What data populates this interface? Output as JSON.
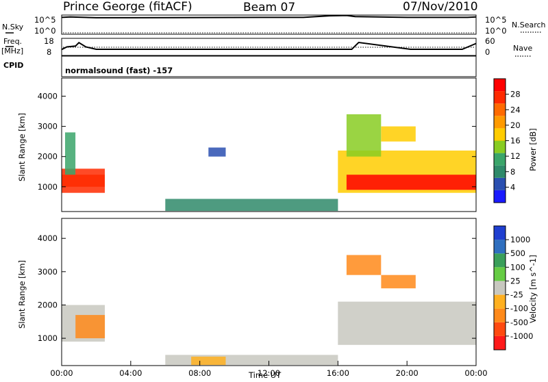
{
  "header": {
    "station": "Prince George (fitACF)",
    "beam": "Beam 07",
    "date": "07/Nov/2010"
  },
  "side_labels": {
    "nsky": "N.Sky",
    "freq": "Freq.",
    "freq_unit": "[MHz]",
    "cpid": "CPID",
    "nsearch": "N.Search",
    "nave": "Nave",
    "cpid_text": "normalsound (fast) -157"
  },
  "colors": {
    "velocity_scale": [
      "#1f3fd0",
      "#2f6fbf",
      "#3a9f5a",
      "#66cc44",
      "#c8c8c0",
      "#ffb020",
      "#ff8a1a",
      "#ff4a10",
      "#ff1a1a"
    ],
    "power_scale": [
      "#1a1aff",
      "#2a4fb0",
      "#2f8a6a",
      "#3aa56a",
      "#88cc22",
      "#ffcc00",
      "#ff9a00",
      "#ff6a00",
      "#ff2a00",
      "#ff0000"
    ]
  },
  "chart_data": [
    {
      "type": "line",
      "name": "N.Sky / N.Search",
      "y_ticks": [
        "10^5",
        "10^0"
      ],
      "y_ticks_right": [
        "10^5",
        "10^0"
      ],
      "ylim": [
        0,
        5
      ],
      "series": [
        {
          "x": [
            0,
            0.5,
            2,
            4,
            8,
            12,
            14,
            15.5,
            16.5,
            17,
            20,
            22,
            23.5,
            24
          ],
          "values": [
            4.4,
            4.5,
            4.3,
            4.3,
            4.35,
            4.4,
            4.4,
            4.8,
            4.9,
            4.6,
            4.4,
            4.4,
            4.4,
            4.5
          ]
        }
      ]
    },
    {
      "type": "line",
      "name": "Freq / Nave",
      "y_ticks": [
        "18",
        "8"
      ],
      "y_ticks_right": [
        "60",
        "0"
      ],
      "ylim": [
        8,
        18
      ],
      "series": [
        {
          "x": [
            0,
            0.3,
            0.8,
            1,
            1.4,
            2,
            4,
            8,
            12,
            14,
            16,
            16.8,
            17.2,
            20.2,
            23.2,
            24
          ],
          "values": [
            11.5,
            13,
            13.5,
            15.5,
            13,
            11.6,
            11.6,
            11.6,
            11.6,
            11.6,
            11.6,
            11.6,
            15.6,
            11.6,
            11.6,
            15
          ]
        }
      ]
    },
    {
      "type": "heatmap",
      "quantity": "Power",
      "ylabel": "Slant Range [km]",
      "y_ticks": [
        1000,
        2000,
        3000,
        4000
      ],
      "ylim": [
        180,
        4600
      ],
      "x_ticks": [
        "00:00",
        "04:00",
        "08:00",
        "12:00",
        "16:00",
        "20:00",
        "00:00"
      ],
      "xlim": [
        0,
        24
      ],
      "colorbar_label": "Power [dB]",
      "colorbar_ticks": [
        4,
        8,
        12,
        16,
        20,
        24,
        28
      ],
      "regions": [
        {
          "x": [
            0,
            2.5
          ],
          "y": [
            800,
            1600
          ],
          "level": 8
        },
        {
          "x": [
            0,
            2.5
          ],
          "y": [
            1000,
            1400
          ],
          "level": 8
        },
        {
          "x": [
            0.2,
            0.8
          ],
          "y": [
            1400,
            2800
          ],
          "level": 3
        },
        {
          "x": [
            16,
            24
          ],
          "y": [
            800,
            2200
          ],
          "level": 5
        },
        {
          "x": [
            16.5,
            24
          ],
          "y": [
            900,
            1400
          ],
          "level": 9
        },
        {
          "x": [
            16.5,
            18.5
          ],
          "y": [
            2000,
            3400
          ],
          "level": 4
        },
        {
          "x": [
            18.5,
            20.5
          ],
          "y": [
            2500,
            3000
          ],
          "level": 5
        },
        {
          "x": [
            6,
            16
          ],
          "y": [
            200,
            600
          ],
          "level": 2
        },
        {
          "x": [
            8.5,
            9.5
          ],
          "y": [
            2000,
            2300
          ],
          "level": 1
        }
      ]
    },
    {
      "type": "heatmap",
      "quantity": "Velocity",
      "ylabel": "Slant Range [km]",
      "y_ticks": [
        1000,
        2000,
        3000,
        4000
      ],
      "ylim": [
        180,
        4600
      ],
      "x_ticks": [
        "00:00",
        "04:00",
        "08:00",
        "12:00",
        "16:00",
        "20:00",
        "00:00"
      ],
      "xlim": [
        0,
        24
      ],
      "xlabel": "Time UT",
      "colorbar_label": "Velocity [m s^-1]",
      "colorbar_ticks": [
        1000,
        500,
        100,
        25,
        -25,
        -100,
        -500,
        -1000
      ],
      "regions": [
        {
          "x": [
            0,
            2.5
          ],
          "y": [
            900,
            2000
          ],
          "level": 4
        },
        {
          "x": [
            0.8,
            2.5
          ],
          "y": [
            1000,
            1700
          ],
          "level": 6
        },
        {
          "x": [
            16,
            24
          ],
          "y": [
            800,
            2100
          ],
          "level": 4
        },
        {
          "x": [
            16.5,
            18.5
          ],
          "y": [
            2900,
            3500
          ],
          "level": 6
        },
        {
          "x": [
            18.5,
            20.5
          ],
          "y": [
            2500,
            2900
          ],
          "level": 6
        },
        {
          "x": [
            6,
            16
          ],
          "y": [
            200,
            500
          ],
          "level": 4
        },
        {
          "x": [
            7.5,
            9.5
          ],
          "y": [
            200,
            450
          ],
          "level": 5
        }
      ]
    }
  ]
}
